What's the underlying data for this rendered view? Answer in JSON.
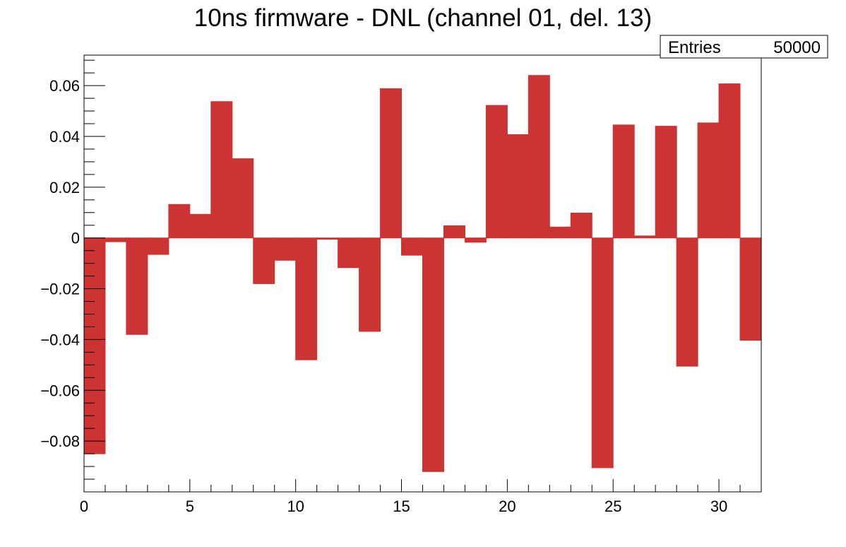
{
  "chart_data": {
    "type": "bar",
    "title": "10ns firmware - DNL (channel 01, del. 13)",
    "xlabel": "",
    "ylabel": "",
    "xlim": [
      0,
      32
    ],
    "ylim": [
      -0.1,
      0.072
    ],
    "bin_edges_start": 0,
    "bin_width": 1,
    "values": [
      -0.085,
      -0.0015,
      -0.038,
      -0.0065,
      0.0132,
      0.0093,
      0.0537,
      0.0312,
      -0.018,
      -0.0088,
      -0.048,
      -0.0005,
      -0.0117,
      -0.0368,
      0.0588,
      -0.0068,
      -0.092,
      0.0048,
      -0.0017,
      0.0522,
      0.0407,
      0.064,
      0.0043,
      0.0098,
      -0.0905,
      0.0445,
      0.0008,
      0.044,
      -0.0505,
      0.0453,
      0.0607,
      -0.0403
    ],
    "bar_color": "#cc3333",
    "x_ticks": [
      {
        "value": 0,
        "label": "0"
      },
      {
        "value": 5,
        "label": "5"
      },
      {
        "value": 10,
        "label": "10"
      },
      {
        "value": 15,
        "label": "15"
      },
      {
        "value": 20,
        "label": "20"
      },
      {
        "value": 25,
        "label": "25"
      },
      {
        "value": 30,
        "label": "30"
      }
    ],
    "y_ticks": [
      {
        "value": 0.06,
        "label": "0.06"
      },
      {
        "value": 0.04,
        "label": "0.04"
      },
      {
        "value": 0.02,
        "label": "0.02"
      },
      {
        "value": 0,
        "label": "0"
      },
      {
        "value": -0.02,
        "label": "−0.02"
      },
      {
        "value": -0.04,
        "label": "−0.04"
      },
      {
        "value": -0.06,
        "label": "−0.06"
      },
      {
        "value": -0.08,
        "label": "−0.08"
      }
    ],
    "x_minor_step": 1,
    "y_minor_step": 0.005,
    "stats": {
      "label": "Entries",
      "value": "50000"
    },
    "grid": false,
    "legend": "none"
  }
}
